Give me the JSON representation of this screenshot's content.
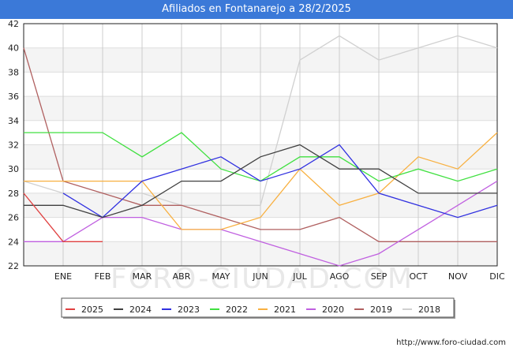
{
  "title": "Afiliados en Fontanarejo a 28/2/2025",
  "watermark": "FORO-CIUDAD.COM",
  "footer_url": "http://www.foro-ciudad.com",
  "chart_data": {
    "type": "line",
    "title": "Afiliados en Fontanarejo a 28/2/2025",
    "xlabel": "",
    "ylabel": "",
    "categories": [
      "",
      "ENE",
      "FEB",
      "MAR",
      "ABR",
      "MAY",
      "JUN",
      "JUL",
      "AGO",
      "SEP",
      "OCT",
      "NOV",
      "DIC"
    ],
    "ylim": [
      22,
      42
    ],
    "yticks": [
      22,
      24,
      26,
      28,
      30,
      32,
      34,
      36,
      38,
      40,
      42
    ],
    "grid": true,
    "legend_position": "bottom",
    "series": [
      {
        "name": "2018",
        "color": "#d0d0d0",
        "values": [
          29,
          28,
          28,
          28,
          27,
          27,
          27,
          39,
          41,
          39,
          40,
          41,
          40
        ]
      },
      {
        "name": "2019",
        "color": "#b06060",
        "values": [
          40,
          29,
          28,
          27,
          27,
          26,
          25,
          25,
          26,
          24,
          24,
          24,
          24
        ]
      },
      {
        "name": "2020",
        "color": "#c060e0",
        "values": [
          24,
          24,
          26,
          26,
          25,
          25,
          24,
          23,
          22,
          23,
          25,
          27,
          29
        ]
      },
      {
        "name": "2021",
        "color": "#f8b040",
        "values": [
          29,
          29,
          29,
          29,
          25,
          25,
          26,
          30,
          27,
          28,
          31,
          30,
          33
        ]
      },
      {
        "name": "2022",
        "color": "#40e040",
        "values": [
          33,
          33,
          33,
          31,
          33,
          30,
          29,
          31,
          31,
          29,
          30,
          29,
          30
        ]
      },
      {
        "name": "2023",
        "color": "#3030e0",
        "values": [
          null,
          28,
          26,
          29,
          30,
          31,
          29,
          30,
          32,
          28,
          27,
          26,
          27
        ]
      },
      {
        "name": "2024",
        "color": "#404040",
        "values": [
          27,
          27,
          26,
          27,
          29,
          29,
          31,
          32,
          30,
          30,
          28,
          28,
          28
        ]
      },
      {
        "name": "2025",
        "color": "#e04040",
        "values": [
          28,
          24,
          24,
          null,
          null,
          null,
          null,
          null,
          null,
          null,
          null,
          null,
          null
        ]
      }
    ],
    "legend_order": [
      "2025",
      "2024",
      "2023",
      "2022",
      "2021",
      "2020",
      "2019",
      "2018"
    ]
  }
}
